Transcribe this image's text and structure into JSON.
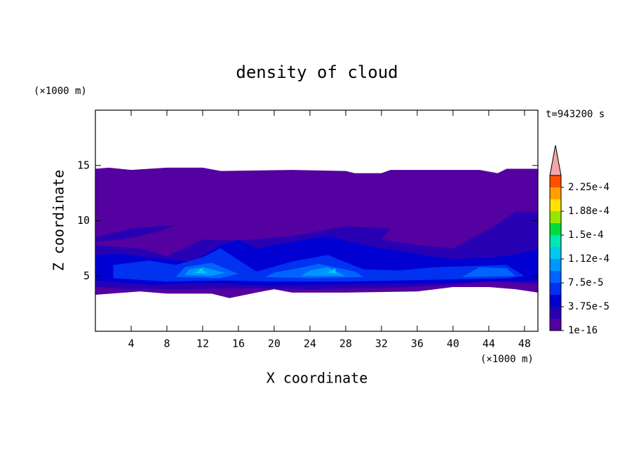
{
  "chart_data": {
    "type": "contour",
    "title": "density of cloud",
    "xlabel": "X coordinate",
    "ylabel": "Z coordinate",
    "xunit": "(×1000 m)",
    "yunit": "(×1000 m)",
    "annotation": "t=943200 s",
    "xlim": [
      0,
      49.5
    ],
    "ylim": [
      0,
      20
    ],
    "xticks": [
      4,
      8,
      12,
      16,
      20,
      24,
      28,
      32,
      36,
      40,
      44,
      48
    ],
    "yticks": [
      5,
      10,
      15
    ],
    "levels": [
      1e-16,
      1.875e-05,
      3.75e-05,
      5.625e-05,
      7.5e-05,
      9.375e-05,
      0.0001125,
      0.00013125,
      0.00015,
      0.00016875,
      0.0001875,
      0.00020625,
      0.000225
    ],
    "colors": [
      "#5500a0",
      "#2800b4",
      "#0000d2",
      "#0032f0",
      "#0064ff",
      "#0096ff",
      "#00c8f0",
      "#00e6b4",
      "#00dc3c",
      "#96e600",
      "#ffe100",
      "#ffa000",
      "#ff5000"
    ],
    "clim": [
      1e-16,
      0.00024375
    ],
    "over_color": "#f4a6a6",
    "colorbar_ticks": [
      {
        "value": 1e-16,
        "label": "1e-16"
      },
      {
        "value": 3.75e-05,
        "label": "3.75e-5"
      },
      {
        "value": 7.5e-05,
        "label": "7.5e-5"
      },
      {
        "value": 0.0001125,
        "label": "1.12e-4"
      },
      {
        "value": 0.00015,
        "label": "1.5e-4"
      },
      {
        "value": 0.0001875,
        "label": "1.88e-4"
      },
      {
        "value": 0.000225,
        "label": "2.25e-4"
      }
    ],
    "regions": [
      {
        "value": 1e-16,
        "points": [
          [
            0,
            14.7
          ],
          [
            1.5,
            14.8
          ],
          [
            4,
            14.6
          ],
          [
            8,
            14.8
          ],
          [
            12,
            14.8
          ],
          [
            14,
            14.5
          ],
          [
            22,
            14.6
          ],
          [
            28,
            14.5
          ],
          [
            29,
            14.3
          ],
          [
            32,
            14.3
          ],
          [
            33,
            14.6
          ],
          [
            43,
            14.6
          ],
          [
            45,
            14.3
          ],
          [
            46,
            14.7
          ],
          [
            49.5,
            14.7
          ],
          [
            49.5,
            3.5
          ],
          [
            47,
            3.8
          ],
          [
            44,
            4.0
          ],
          [
            40,
            4.0
          ],
          [
            36,
            3.6
          ],
          [
            28,
            3.5
          ],
          [
            22,
            3.5
          ],
          [
            20,
            3.8
          ],
          [
            18,
            3.5
          ],
          [
            15,
            3.0
          ],
          [
            13,
            3.4
          ],
          [
            8,
            3.4
          ],
          [
            5,
            3.6
          ],
          [
            0,
            3.3
          ]
        ]
      },
      {
        "value": 1.875e-05,
        "points": [
          [
            0,
            4
          ],
          [
            4,
            3.8
          ],
          [
            10,
            3.8
          ],
          [
            16,
            3.9
          ],
          [
            24,
            3.8
          ],
          [
            32,
            3.9
          ],
          [
            40,
            4.2
          ],
          [
            44,
            4.5
          ],
          [
            49.5,
            4.3
          ],
          [
            49.5,
            10.8
          ],
          [
            47,
            10.8
          ],
          [
            44,
            9.2
          ],
          [
            40,
            7.5
          ],
          [
            36,
            7.8
          ],
          [
            32,
            8.3
          ],
          [
            33,
            9.3
          ],
          [
            28,
            9.5
          ],
          [
            22,
            8.6
          ],
          [
            16,
            8.2
          ],
          [
            12,
            8.3
          ],
          [
            8,
            6.8
          ],
          [
            5,
            7.5
          ],
          [
            0,
            7.8
          ]
        ]
      },
      {
        "value": 1.875e-05,
        "points": [
          [
            0,
            8.5
          ],
          [
            4,
            9.3
          ],
          [
            9,
            9.6
          ],
          [
            7,
            9.0
          ],
          [
            3,
            8.3
          ],
          [
            0,
            8.1
          ]
        ]
      },
      {
        "value": 3.75e-05,
        "points": [
          [
            0,
            4.6
          ],
          [
            6,
            4.2
          ],
          [
            12,
            4.4
          ],
          [
            20,
            4.1
          ],
          [
            30,
            4.3
          ],
          [
            38,
            4.3
          ],
          [
            44,
            4.5
          ],
          [
            49.5,
            4.6
          ],
          [
            49.5,
            7.4
          ],
          [
            46,
            6.8
          ],
          [
            40,
            6.5
          ],
          [
            36,
            7.0
          ],
          [
            30,
            7.8
          ],
          [
            26,
            8.6
          ],
          [
            22,
            8.1
          ],
          [
            18,
            7.5
          ],
          [
            16,
            8.3
          ],
          [
            14,
            7.8
          ],
          [
            11,
            6.3
          ],
          [
            7,
            6.6
          ],
          [
            3,
            7.0
          ],
          [
            0,
            6.9
          ]
        ]
      },
      {
        "value": 5.625e-05,
        "points": [
          [
            2,
            4.8
          ],
          [
            8,
            4.5
          ],
          [
            14,
            4.6
          ],
          [
            20,
            4.5
          ],
          [
            28,
            4.5
          ],
          [
            34,
            4.6
          ],
          [
            40,
            4.7
          ],
          [
            46,
            4.8
          ],
          [
            48,
            5
          ],
          [
            46,
            6
          ],
          [
            42,
            5.9
          ],
          [
            38,
            5.8
          ],
          [
            34,
            5.5
          ],
          [
            30,
            5.6
          ],
          [
            26,
            6.9
          ],
          [
            22,
            6.3
          ],
          [
            18,
            5.4
          ],
          [
            14,
            7.5
          ],
          [
            12,
            6.7
          ],
          [
            9,
            6.0
          ],
          [
            6,
            6.4
          ],
          [
            2,
            6.0
          ]
        ]
      },
      {
        "value": 7.5e-05,
        "points": [
          [
            9,
            4.9
          ],
          [
            14,
            4.8
          ],
          [
            16,
            5.2
          ],
          [
            13,
            6.2
          ],
          [
            10,
            5.8
          ]
        ]
      },
      {
        "value": 7.5e-05,
        "points": [
          [
            19,
            4.9
          ],
          [
            24,
            4.8
          ],
          [
            30,
            4.9
          ],
          [
            29,
            5.4
          ],
          [
            25,
            6.1
          ],
          [
            22,
            5.6
          ],
          [
            20,
            5.3
          ]
        ]
      },
      {
        "value": 7.5e-05,
        "points": [
          [
            41,
            4.9
          ],
          [
            47,
            5.0
          ],
          [
            46,
            5.7
          ],
          [
            43,
            5.8
          ]
        ]
      },
      {
        "value": 9.375e-05,
        "points": [
          [
            10,
            5.1
          ],
          [
            13,
            5.0
          ],
          [
            14.5,
            5.3
          ],
          [
            12,
            5.8
          ],
          [
            10.5,
            5.6
          ]
        ]
      },
      {
        "value": 9.375e-05,
        "points": [
          [
            23,
            5.0
          ],
          [
            28,
            5.0
          ],
          [
            26,
            5.8
          ],
          [
            24,
            5.5
          ]
        ]
      },
      {
        "value": 0.0001125,
        "points": [
          [
            11,
            5.3
          ],
          [
            12.5,
            5.2
          ],
          [
            12,
            5.6
          ]
        ]
      },
      {
        "value": 0.0001125,
        "points": [
          [
            26,
            5.3
          ],
          [
            27,
            5.2
          ],
          [
            26.8,
            5.7
          ]
        ]
      },
      {
        "value": 0.00013125,
        "points": [
          [
            11.5,
            5.5
          ],
          [
            12,
            5.4
          ],
          [
            11.9,
            5.7
          ]
        ]
      }
    ]
  }
}
